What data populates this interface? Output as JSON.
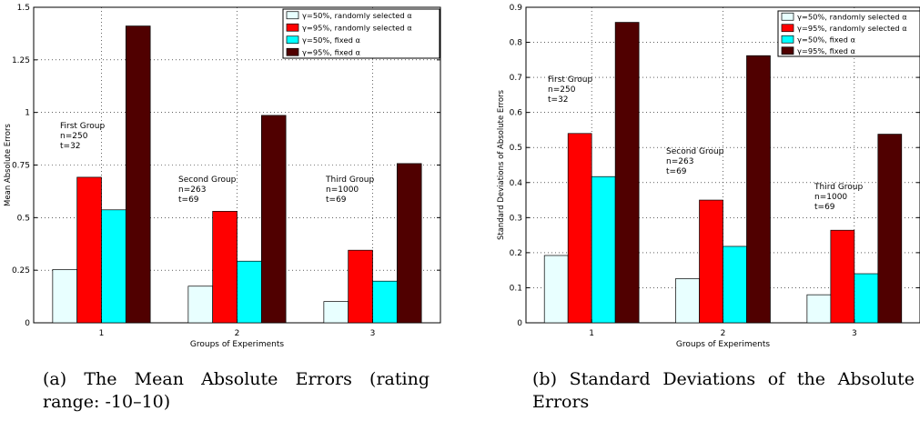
{
  "chart_data": [
    {
      "type": "bar",
      "panel": "a",
      "xlabel": "Groups of Experiments",
      "ylabel": "Mean Absolute Errors",
      "categories": [
        "1",
        "2",
        "3"
      ],
      "ylim": [
        0,
        1.5
      ],
      "yticks": [
        "0",
        "0.25",
        "0.5",
        "0.75",
        "1",
        "1.25",
        "1.5"
      ],
      "ytick_values": [
        0,
        0.25,
        0.5,
        0.75,
        1,
        1.25,
        1.5
      ],
      "grid": true,
      "legend_placement": "top-right",
      "series": [
        {
          "name": "γ=50%, randomly selected α",
          "values": [
            0.253,
            0.174,
            0.101
          ]
        },
        {
          "name": "γ=95%, randomly selected α",
          "values": [
            0.692,
            0.53,
            0.345
          ]
        },
        {
          "name": "γ=50%, fixed α",
          "values": [
            0.537,
            0.293,
            0.198
          ]
        },
        {
          "name": "γ=95%, fixed α",
          "values": [
            1.411,
            0.986,
            0.757
          ]
        }
      ],
      "annotations": [
        {
          "lines": [
            "First Group",
            "n=250",
            "t=32"
          ]
        },
        {
          "lines": [
            "Second Group",
            "n=263",
            "t=69"
          ]
        },
        {
          "lines": [
            "Third Group",
            "n=1000",
            "t=69"
          ]
        }
      ]
    },
    {
      "type": "bar",
      "panel": "b",
      "xlabel": "Groups of Experiments",
      "ylabel": "Standard Deviations of Absolute Errors",
      "categories": [
        "1",
        "2",
        "3"
      ],
      "ylim": [
        0,
        0.9
      ],
      "yticks": [
        "0",
        "0.1",
        "0.2",
        "0.3",
        "0.4",
        "0.5",
        "0.6",
        "0.7",
        "0.8",
        "0.9"
      ],
      "ytick_values": [
        0,
        0.1,
        0.2,
        0.3,
        0.4,
        0.5,
        0.6,
        0.7,
        0.8,
        0.9
      ],
      "grid": true,
      "legend_placement": "top-right",
      "series": [
        {
          "name": "γ=50%, randomly selected α",
          "values": [
            0.192,
            0.126,
            0.08
          ]
        },
        {
          "name": "γ=95%, randomly selected α",
          "values": [
            0.54,
            0.35,
            0.264
          ]
        },
        {
          "name": "γ=50%, fixed α",
          "values": [
            0.417,
            0.218,
            0.14
          ]
        },
        {
          "name": "γ=95%, fixed α",
          "values": [
            0.857,
            0.762,
            0.538
          ]
        }
      ],
      "annotations": [
        {
          "lines": [
            "First Group",
            "n=250",
            "t=32"
          ]
        },
        {
          "lines": [
            "Second Group",
            "n=263",
            "t=69"
          ]
        },
        {
          "lines": [
            "Third Group",
            "n=1000",
            "t=69"
          ]
        }
      ]
    }
  ],
  "colors": {
    "series": [
      "#e8ffff",
      "#ff0000",
      "#00ffff",
      "#500000"
    ],
    "axis": "#000000",
    "grid": "#000000"
  },
  "captions": {
    "a": "(a) The Mean Absolute Errors (rating range: -10–10)",
    "b": "(b) Standard Deviations of the Absolute Errors"
  }
}
